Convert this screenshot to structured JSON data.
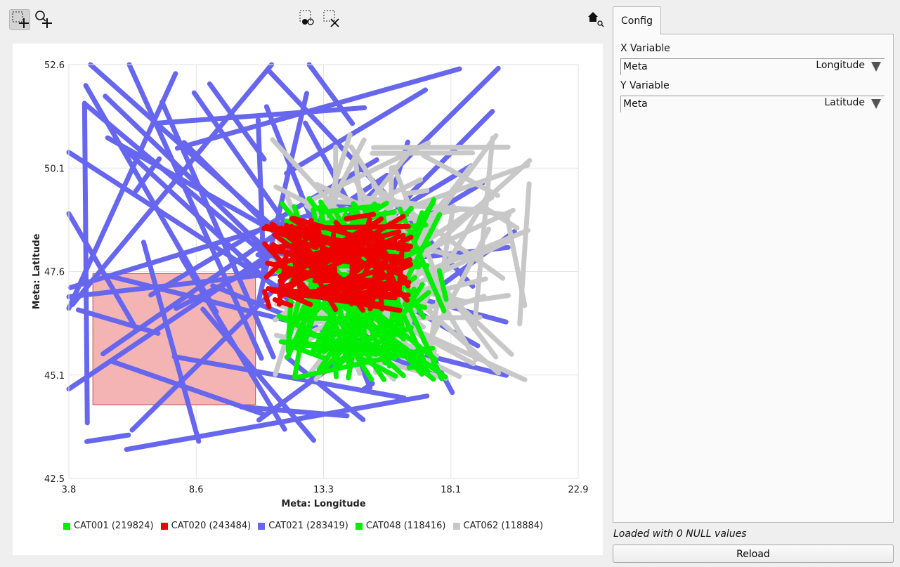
{
  "toolbar": {
    "icons": [
      "box-select-icon",
      "zoom-in-icon",
      "select-points-icon",
      "clear-selection-icon",
      "home-zoom-icon"
    ]
  },
  "chart_data": {
    "type": "scatter",
    "xlabel": "Meta: Longitude",
    "ylabel": "Meta: Latitude",
    "xlim": [
      3.8,
      22.9
    ],
    "ylim": [
      42.5,
      52.6
    ],
    "x_ticks": [
      "3.8",
      "8.6",
      "13.3",
      "18.1",
      "22.9"
    ],
    "y_ticks": [
      "52.6",
      "50.1",
      "47.6",
      "45.1",
      "42.5"
    ],
    "grid": true,
    "legend_position": "bottom",
    "selection_rect": {
      "x": [
        4.7,
        10.8
      ],
      "y": [
        44.3,
        47.5
      ]
    },
    "series": [
      {
        "name": "CAT001 (219824)",
        "color": "#00ee00",
        "center": [
          14.6,
          47.1
        ],
        "spread": [
          3.0,
          2.2
        ]
      },
      {
        "name": "CAT020 (243484)",
        "color": "#ee0000",
        "center": [
          13.9,
          47.8
        ],
        "spread": [
          2.8,
          1.2
        ]
      },
      {
        "name": "CAT021 (283419)",
        "color": "#6666ee",
        "center": [
          12.0,
          48.0
        ],
        "spread": [
          9.0,
          4.8
        ]
      },
      {
        "name": "CAT048 (118416)",
        "color": "#00ee00",
        "center": [
          14.8,
          47.2
        ],
        "spread": [
          3.2,
          2.3
        ]
      },
      {
        "name": "CAT062 (118884)",
        "color": "#c8c8c8",
        "center": [
          16.4,
          47.9
        ],
        "spread": [
          5.0,
          3.0
        ]
      }
    ],
    "legend": [
      "CAT001 (219824)",
      "CAT020 (243484)",
      "CAT021 (283419)",
      "CAT048 (118416)",
      "CAT062 (118884)"
    ]
  },
  "tabs": [
    {
      "label": "Config"
    }
  ],
  "config": {
    "x_variable_label": "X Variable",
    "x_meta": "Meta",
    "x_value": "Longitude",
    "y_variable_label": "Y Variable",
    "y_meta": "Meta",
    "y_value": "Latitude"
  },
  "status": "Loaded with 0 NULL values",
  "reload_label": "Reload"
}
